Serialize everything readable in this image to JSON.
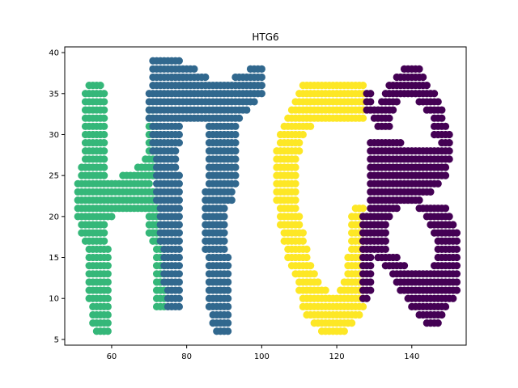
{
  "chart_data": {
    "type": "scatter",
    "title": "HTG6",
    "xlabel": "",
    "ylabel": "",
    "xlim": [
      47.5,
      154.5
    ],
    "ylim": [
      4.3,
      40.7
    ],
    "xticks": [
      60,
      80,
      100,
      120,
      140
    ],
    "yticks": [
      5,
      10,
      15,
      20,
      25,
      30,
      35,
      40
    ],
    "grid": false,
    "legend": "none",
    "series": [
      {
        "color": "#35b779",
        "rows": [
          [
            36,
            54,
            57
          ],
          [
            35,
            53,
            58
          ],
          [
            34,
            53,
            58
          ],
          [
            33,
            53,
            58
          ],
          [
            32,
            53,
            58
          ],
          [
            31,
            53,
            58
          ],
          [
            30,
            53,
            58
          ],
          [
            29,
            53,
            58
          ],
          [
            28,
            53,
            58
          ],
          [
            27,
            53,
            58
          ],
          [
            26,
            52,
            58
          ],
          [
            25,
            52,
            58
          ],
          [
            24,
            51,
            70
          ],
          [
            23,
            51,
            72
          ],
          [
            22,
            51,
            72
          ],
          [
            21,
            51,
            72
          ],
          [
            20,
            51,
            60
          ],
          [
            19,
            52,
            58
          ],
          [
            18,
            52,
            58
          ],
          [
            17,
            53,
            58
          ],
          [
            16,
            54,
            59
          ],
          [
            15,
            54,
            59
          ],
          [
            14,
            54,
            59
          ],
          [
            13,
            54,
            59
          ],
          [
            12,
            54,
            59
          ],
          [
            11,
            54,
            59
          ],
          [
            10,
            54,
            59
          ],
          [
            9,
            55,
            59
          ],
          [
            8,
            55,
            59
          ],
          [
            7,
            55,
            59
          ],
          [
            6,
            56,
            59
          ],
          [
            33,
            70,
            71
          ],
          [
            32,
            70,
            71
          ],
          [
            31,
            70,
            72
          ],
          [
            30,
            70,
            72
          ],
          [
            29,
            70,
            72
          ],
          [
            28,
            70,
            72
          ],
          [
            27,
            69,
            72
          ],
          [
            26,
            67,
            72
          ],
          [
            25,
            63,
            72
          ],
          [
            20,
            70,
            72
          ],
          [
            19,
            70,
            72
          ],
          [
            18,
            70,
            72
          ],
          [
            17,
            71,
            73
          ],
          [
            16,
            72,
            74
          ],
          [
            15,
            72,
            74
          ],
          [
            14,
            72,
            74
          ],
          [
            13,
            72,
            74
          ],
          [
            12,
            72,
            74
          ],
          [
            11,
            72,
            74
          ],
          [
            10,
            72,
            74
          ],
          [
            9,
            72,
            74
          ]
        ]
      },
      {
        "color": "#31688e",
        "rows": [
          [
            39,
            71,
            78
          ],
          [
            38,
            71,
            82
          ],
          [
            37,
            71,
            85
          ],
          [
            36,
            71,
            100
          ],
          [
            35,
            70,
            100
          ],
          [
            34,
            70,
            98
          ],
          [
            33,
            70,
            96
          ],
          [
            32,
            70,
            94
          ],
          [
            31,
            71,
            78
          ],
          [
            30,
            71,
            78
          ],
          [
            29,
            71,
            78
          ],
          [
            28,
            71,
            77
          ],
          [
            27,
            72,
            77
          ],
          [
            26,
            72,
            77
          ],
          [
            25,
            72,
            78
          ],
          [
            24,
            72,
            78
          ],
          [
            23,
            72,
            78
          ],
          [
            22,
            72,
            78
          ],
          [
            21,
            73,
            78
          ],
          [
            20,
            73,
            78
          ],
          [
            19,
            73,
            78
          ],
          [
            18,
            73,
            78
          ],
          [
            17,
            73,
            78
          ],
          [
            16,
            74,
            78
          ],
          [
            15,
            74,
            78
          ],
          [
            14,
            74,
            78
          ],
          [
            13,
            74,
            78
          ],
          [
            12,
            74,
            78
          ],
          [
            11,
            75,
            78
          ],
          [
            10,
            75,
            78
          ],
          [
            9,
            75,
            78
          ],
          [
            38,
            97,
            100
          ],
          [
            37,
            76,
            79
          ],
          [
            37,
            93,
            100
          ],
          [
            31,
            86,
            93
          ],
          [
            30,
            86,
            93
          ],
          [
            29,
            86,
            93
          ],
          [
            28,
            86,
            93
          ],
          [
            27,
            86,
            93
          ],
          [
            26,
            86,
            93
          ],
          [
            25,
            86,
            93
          ],
          [
            24,
            86,
            93
          ],
          [
            23,
            85,
            92
          ],
          [
            22,
            85,
            92
          ],
          [
            21,
            85,
            90
          ],
          [
            20,
            85,
            90
          ],
          [
            19,
            85,
            90
          ],
          [
            18,
            85,
            90
          ],
          [
            17,
            85,
            90
          ],
          [
            16,
            85,
            90
          ],
          [
            15,
            86,
            91
          ],
          [
            14,
            86,
            91
          ],
          [
            13,
            86,
            91
          ],
          [
            12,
            86,
            91
          ],
          [
            11,
            86,
            91
          ],
          [
            10,
            86,
            91
          ],
          [
            9,
            86,
            91
          ],
          [
            8,
            87,
            91
          ],
          [
            7,
            87,
            91
          ],
          [
            6,
            88,
            91
          ]
        ]
      },
      {
        "color": "#fde725",
        "rows": [
          [
            36,
            111,
            127
          ],
          [
            35,
            110,
            127
          ],
          [
            34,
            109,
            127
          ],
          [
            33,
            108,
            127
          ],
          [
            32,
            107,
            127
          ],
          [
            31,
            106,
            113
          ],
          [
            30,
            105,
            111
          ],
          [
            29,
            105,
            110
          ],
          [
            28,
            104,
            110
          ],
          [
            27,
            104,
            109
          ],
          [
            26,
            104,
            109
          ],
          [
            25,
            104,
            109
          ],
          [
            24,
            104,
            109
          ],
          [
            23,
            104,
            109
          ],
          [
            22,
            104,
            109
          ],
          [
            21,
            105,
            109
          ],
          [
            20,
            105,
            110
          ],
          [
            19,
            105,
            110
          ],
          [
            18,
            106,
            111
          ],
          [
            17,
            106,
            111
          ],
          [
            16,
            107,
            112
          ],
          [
            15,
            107,
            112
          ],
          [
            14,
            108,
            113
          ],
          [
            13,
            109,
            114
          ],
          [
            12,
            110,
            115
          ],
          [
            11,
            110,
            117
          ],
          [
            10,
            111,
            127
          ],
          [
            9,
            111,
            127
          ],
          [
            8,
            112,
            126
          ],
          [
            7,
            114,
            124
          ],
          [
            6,
            116,
            122
          ],
          [
            21,
            125,
            127
          ],
          [
            20,
            124,
            127
          ],
          [
            19,
            124,
            127
          ],
          [
            18,
            124,
            127
          ],
          [
            17,
            124,
            127
          ],
          [
            16,
            124,
            127
          ],
          [
            15,
            123,
            127
          ],
          [
            14,
            123,
            127
          ],
          [
            13,
            123,
            127
          ],
          [
            12,
            122,
            127
          ],
          [
            11,
            121,
            127
          ]
        ]
      },
      {
        "color": "#440154",
        "rows": [
          [
            38,
            138,
            142
          ],
          [
            37,
            136,
            143
          ],
          [
            36,
            134,
            144
          ],
          [
            35,
            128,
            129
          ],
          [
            35,
            133,
            146
          ],
          [
            34,
            128,
            129
          ],
          [
            34,
            132,
            136
          ],
          [
            34,
            142,
            147
          ],
          [
            33,
            128,
            130
          ],
          [
            33,
            131,
            135
          ],
          [
            33,
            144,
            148
          ],
          [
            32,
            130,
            134
          ],
          [
            32,
            146,
            148
          ],
          [
            31,
            131,
            134
          ],
          [
            31,
            146,
            149
          ],
          [
            30,
            146,
            150
          ],
          [
            29,
            129,
            137
          ],
          [
            29,
            148,
            150
          ],
          [
            28,
            129,
            150
          ],
          [
            27,
            129,
            150
          ],
          [
            26,
            129,
            149
          ],
          [
            25,
            129,
            149
          ],
          [
            24,
            129,
            147
          ],
          [
            23,
            129,
            145
          ],
          [
            22,
            129,
            142
          ],
          [
            21,
            129,
            136
          ],
          [
            21,
            142,
            149
          ],
          [
            20,
            127,
            134
          ],
          [
            20,
            144,
            150
          ],
          [
            19,
            127,
            133
          ],
          [
            19,
            145,
            151
          ],
          [
            18,
            127,
            133
          ],
          [
            18,
            146,
            152
          ],
          [
            17,
            127,
            133
          ],
          [
            17,
            147,
            152
          ],
          [
            16,
            127,
            133
          ],
          [
            16,
            147,
            152
          ],
          [
            15,
            127,
            129
          ],
          [
            15,
            131,
            136
          ],
          [
            15,
            147,
            152
          ],
          [
            14,
            127,
            129
          ],
          [
            14,
            133,
            138
          ],
          [
            14,
            146,
            152
          ],
          [
            13,
            127,
            129
          ],
          [
            13,
            135,
            152
          ],
          [
            12,
            127,
            129
          ],
          [
            12,
            136,
            152
          ],
          [
            11,
            127,
            129
          ],
          [
            11,
            137,
            152
          ],
          [
            10,
            127,
            128
          ],
          [
            10,
            139,
            151
          ],
          [
            9,
            140,
            149
          ],
          [
            8,
            142,
            148
          ],
          [
            7,
            144,
            147
          ]
        ]
      }
    ]
  }
}
